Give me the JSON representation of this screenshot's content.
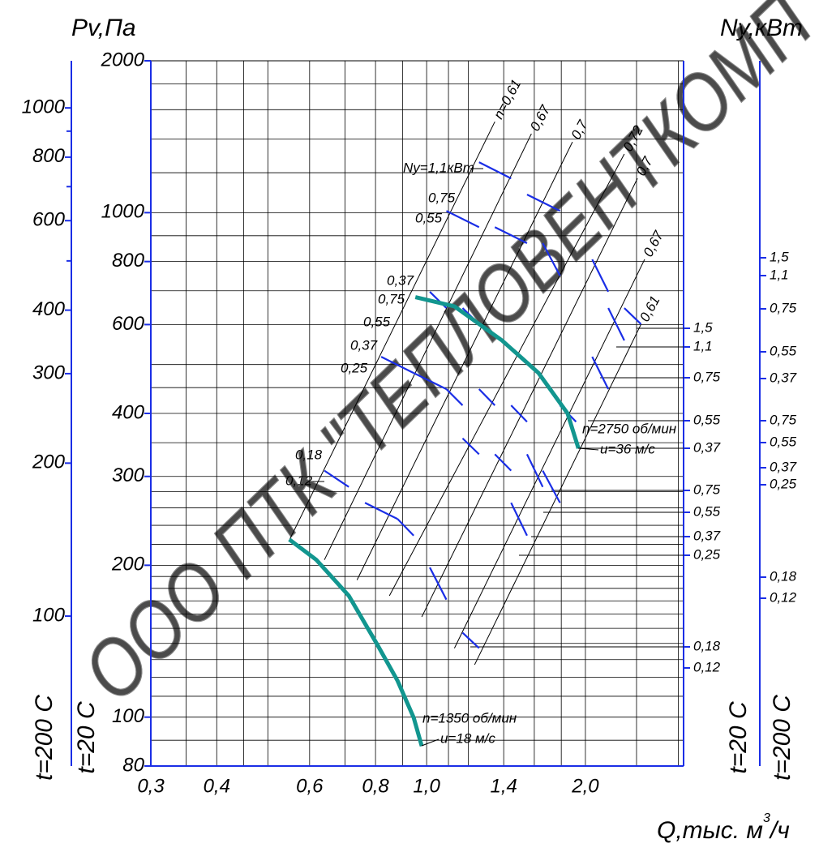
{
  "chart_data": {
    "type": "line",
    "log_scale": true,
    "y_label": "Pv,Па",
    "y2_label": "Ny,кВт",
    "x_label": "Q,тыс. м",
    "x_label_exp": "3",
    "x_label_tail": "/ч",
    "xlim": [
      0.3,
      3.07
    ],
    "ylim": [
      80,
      2000
    ],
    "xticks": [
      {
        "value": 0.3,
        "label": "0,3"
      },
      {
        "value": 0.4,
        "label": "0,4"
      },
      {
        "value": 0.6,
        "label": "0,6"
      },
      {
        "value": 0.8,
        "label": "0,8"
      },
      {
        "value": 1.0,
        "label": "1,0"
      },
      {
        "value": 1.4,
        "label": "1,4"
      },
      {
        "value": 2.0,
        "label": "2,0"
      }
    ],
    "yticks": [
      80,
      100,
      200,
      300,
      400,
      600,
      800,
      1000,
      2000
    ],
    "x_grid": [
      0.35,
      0.45,
      0.5,
      0.7,
      0.9,
      1.1,
      1.2,
      1.6,
      1.8,
      2.5,
      3.0
    ],
    "y_grid": [
      90,
      110,
      120,
      130,
      140,
      150,
      160,
      170,
      180,
      190,
      220,
      240,
      260,
      280,
      350,
      450,
      500,
      700,
      900,
      1200,
      1400,
      1600,
      1800
    ],
    "grid": true,
    "inner_axis_label": "t=20 C",
    "outer_axis": {
      "label": "t=200 C",
      "ylim": [
        50.7,
        1238
      ],
      "yticks": [
        100,
        200,
        300,
        400,
        600,
        800,
        1000
      ],
      "minor": [
        500,
        700,
        900
      ]
    },
    "series": [
      {
        "name": "n=2750 об/мин",
        "speed": "u=36 м/с",
        "color": "#12968f",
        "x": [
          0.952,
          1.129,
          1.39,
          1.63,
          1.85,
          1.94
        ],
        "values": [
          680,
          652,
          558,
          481,
          400,
          341
        ]
      },
      {
        "name": "n=1350 об/мин",
        "speed": "u=18 м/с",
        "color": "#12968f",
        "x": [
          0.549,
          0.618,
          0.712,
          0.807,
          0.881,
          0.945,
          0.979
        ],
        "values": [
          225,
          205,
          174,
          139,
          118,
          99.8,
          87.6
        ]
      }
    ],
    "efficiency_lines": [
      {
        "label": "n=0,61",
        "x": [
          0.55,
          1.347
        ],
        "values": [
          225,
          1515
        ]
      },
      {
        "label": "0,67",
        "x": [
          0.64,
          1.58
        ],
        "values": [
          205,
          1434
        ]
      },
      {
        "label": "0,7",
        "x": [
          0.738,
          1.89
        ],
        "values": [
          187,
          1381
        ]
      },
      {
        "label": "0,72",
        "x": [
          0.85,
          2.37
        ],
        "values": [
          174,
          1307
        ]
      },
      {
        "label": "0,7",
        "x": [
          0.979,
          2.51
        ],
        "values": [
          158,
          1169
        ]
      },
      {
        "label": "0,67",
        "x": [
          1.129,
          2.59
        ],
        "values": [
          137,
          808
        ]
      },
      {
        "label": "0,61",
        "x": [
          1.233,
          2.55
        ],
        "values": [
          127,
          601
        ]
      }
    ],
    "power_dashes": {
      "color": "#1a2ee6",
      "segments": [
        [
          1.257,
          1259,
          1.446,
          1169
        ],
        [
          1.55,
          1086,
          1.79,
          1008
        ],
        [
          1.09,
          1008,
          1.257,
          936
        ],
        [
          1.347,
          936,
          1.55,
          870
        ],
        [
          1.66,
          870,
          1.79,
          750
        ],
        [
          1.014,
          697,
          1.09,
          647
        ],
        [
          1.17,
          647,
          1.257,
          601
        ],
        [
          2.06,
          808,
          2.21,
          697
        ],
        [
          2.21,
          647,
          2.37,
          558
        ],
        [
          2.37,
          647,
          2.55,
          601
        ],
        [
          0.82,
          518,
          0.945,
          481
        ],
        [
          0.945,
          481,
          1.09,
          447
        ],
        [
          1.09,
          447,
          1.17,
          415
        ],
        [
          1.257,
          447,
          1.347,
          415
        ],
        [
          1.446,
          415,
          1.55,
          385
        ],
        [
          1.79,
          415,
          1.92,
          385
        ],
        [
          2.06,
          518,
          2.21,
          447
        ],
        [
          1.17,
          357,
          1.257,
          332
        ],
        [
          1.347,
          332,
          1.446,
          308
        ],
        [
          1.55,
          332,
          1.66,
          286
        ],
        [
          0.64,
          308,
          0.712,
          286
        ],
        [
          0.764,
          266,
          0.881,
          247
        ],
        [
          0.881,
          247,
          0.945,
          229
        ],
        [
          1.014,
          198,
          1.09,
          171
        ],
        [
          1.17,
          147,
          1.257,
          137
        ],
        [
          1.446,
          266,
          1.55,
          229
        ],
        [
          1.66,
          308,
          1.79,
          266
        ]
      ]
    },
    "power_labels": [
      "Ny=1,1кВт",
      "0,75",
      "0,55",
      "0,37",
      "0,75",
      "0,55",
      "0,37",
      "0,25",
      "0,18",
      "0,12"
    ],
    "right_axes": [
      {
        "label": "t=20 C",
        "tick_labels": [
          "1,5",
          "1,1",
          "0,75",
          "0,55",
          "0,37",
          "0,75",
          "0,55",
          "0,37",
          "0,25",
          "0,18",
          "0,12"
        ]
      },
      {
        "label": "t=200 C",
        "tick_labels": [
          "1,5",
          "1,1",
          "0,75",
          "0,55",
          "0,37",
          "0,75",
          "0,55",
          "0,37",
          "0,25",
          "0,18",
          "0,12"
        ]
      }
    ],
    "watermark": "ООО ПТК \"ТЕПЛОВЕНТКОМП"
  }
}
